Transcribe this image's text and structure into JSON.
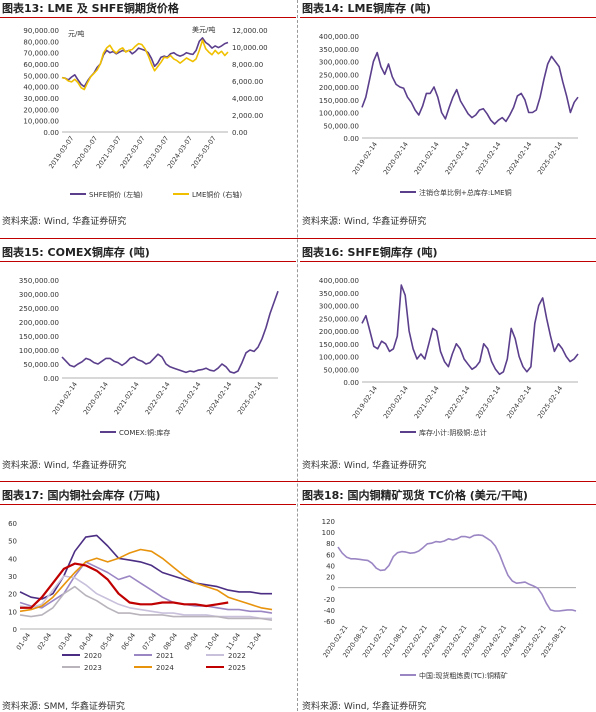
{
  "panels": [
    {
      "title": "图表13: LME 及 SHFE铜期货价格",
      "source": "资料来源: Wind, 华鑫证券研究"
    },
    {
      "title": "图表14: LME铜库存 (吨)",
      "source": "资料来源: Wind, 华鑫证券研究"
    },
    {
      "title": "图表15: COMEX铜库存 (吨)",
      "source": "资料来源: Wind, 华鑫证券研究"
    },
    {
      "title": "图表16: SHFE铜库存 (吨)",
      "source": "资料来源: Wind, 华鑫证券研究"
    },
    {
      "title": "图表17: 国内铜社会库存 (万吨)",
      "source": "资料来源: SMM, 华鑫证券研究"
    },
    {
      "title": "图表18: 国内铜精矿现货 TC价格 (美元/干吨)",
      "source": "资料来源: Wind, 华鑫证券研究"
    }
  ],
  "chart_data": [
    {
      "type": "line",
      "id": "c13",
      "left_unit": "元/吨",
      "right_unit": "美元/吨",
      "y_ticks": [
        "90,000.00",
        "80,000.00",
        "70,000.00",
        "60,000.00",
        "50,000.00",
        "40,000.00",
        "30,000.00",
        "20,000.00",
        "10,000.00",
        "0.00"
      ],
      "y2_ticks": [
        "12,000.00",
        "10,000.00",
        "8,000.00",
        "6,000.00",
        "4,000.00",
        "2,000.00",
        "0.00"
      ],
      "x_ticks": [
        "2019-03-07",
        "2020-03-07",
        "2021-03-07",
        "2022-03-07",
        "2023-03-07",
        "2024-03-07",
        "2025-03-07"
      ],
      "ylim": [
        0,
        90000
      ],
      "y2lim": [
        0,
        12000
      ],
      "series": [
        {
          "name": "SHFE铜价 (左轴)",
          "color": "#5b3f8c",
          "axis": "left",
          "values": [
            48000,
            47500,
            46000,
            48500,
            50500,
            46000,
            42000,
            40000,
            45000,
            49000,
            52000,
            57000,
            60000,
            68000,
            72000,
            70000,
            71000,
            69000,
            70500,
            72000,
            71000,
            72000,
            69000,
            71000,
            74000,
            73000,
            72000,
            70000,
            65000,
            58000,
            61000,
            66000,
            67000,
            66000,
            69000,
            70000,
            68000,
            67000,
            68000,
            70000,
            69000,
            68500,
            72000,
            80000,
            83000,
            79000,
            77000,
            74000,
            76000,
            74500,
            76000,
            78000,
            79000
          ]
        },
        {
          "name": "LME铜价 (右轴)",
          "color": "#f0c000",
          "axis": "right",
          "values": [
            6400,
            6300,
            6000,
            5900,
            6200,
            5800,
            5200,
            5000,
            5800,
            6500,
            6900,
            7300,
            8000,
            9300,
            9900,
            10200,
            9600,
            9300,
            9700,
            9900,
            9400,
            9600,
            9700,
            10100,
            10400,
            10300,
            9800,
            9000,
            8000,
            7200,
            7700,
            8200,
            8800,
            8700,
            9000,
            8600,
            8400,
            8100,
            8400,
            8700,
            8500,
            8300,
            8600,
            9600,
            10800,
            9800,
            9400,
            9100,
            9600,
            9200,
            9500,
            9000,
            9400
          ]
        }
      ]
    },
    {
      "type": "line",
      "id": "c14",
      "y_ticks": [
        "400,000.00",
        "350,000.00",
        "300,000.00",
        "250,000.00",
        "200,000.00",
        "150,000.00",
        "100,000.00",
        "50,000.00",
        "0.00"
      ],
      "x_ticks": [
        "2019-02-14",
        "2020-02-14",
        "2021-02-14",
        "2022-02-14",
        "2023-02-14",
        "2024-02-14",
        "2025-02-14"
      ],
      "ylim": [
        0,
        400000
      ],
      "series": [
        {
          "name": "注销仓单比例+总库存:LME铜",
          "color": "#5b3f8c",
          "values": [
            120000,
            160000,
            230000,
            300000,
            335000,
            280000,
            250000,
            290000,
            240000,
            210000,
            200000,
            195000,
            160000,
            140000,
            110000,
            90000,
            125000,
            175000,
            175000,
            200000,
            160000,
            100000,
            75000,
            120000,
            160000,
            190000,
            145000,
            120000,
            95000,
            80000,
            90000,
            110000,
            115000,
            95000,
            70000,
            55000,
            70000,
            80000,
            65000,
            90000,
            120000,
            165000,
            175000,
            150000,
            100000,
            100000,
            110000,
            160000,
            230000,
            290000,
            320000,
            300000,
            280000,
            220000,
            165000,
            100000,
            140000,
            160000
          ]
        }
      ]
    },
    {
      "type": "line",
      "id": "c15",
      "y_ticks": [
        "350,000.00",
        "300,000.00",
        "250,000.00",
        "200,000.00",
        "150,000.00",
        "100,000.00",
        "50,000.00",
        "0.00"
      ],
      "x_ticks": [
        "2019-02-14",
        "2020-02-14",
        "2021-02-14",
        "2022-02-14",
        "2023-02-14",
        "2024-02-14",
        "2025-02-14"
      ],
      "ylim": [
        0,
        350000
      ],
      "series": [
        {
          "name": "COMEX:铜:库存",
          "color": "#5b3f8c",
          "values": [
            75000,
            60000,
            45000,
            40000,
            50000,
            58000,
            70000,
            65000,
            55000,
            50000,
            60000,
            70000,
            70000,
            60000,
            55000,
            45000,
            55000,
            70000,
            75000,
            65000,
            60000,
            50000,
            55000,
            70000,
            85000,
            75000,
            50000,
            40000,
            35000,
            30000,
            25000,
            20000,
            25000,
            22000,
            28000,
            30000,
            35000,
            28000,
            25000,
            35000,
            50000,
            40000,
            22000,
            18000,
            25000,
            55000,
            90000,
            100000,
            95000,
            110000,
            140000,
            180000,
            230000,
            270000,
            310000
          ]
        }
      ]
    },
    {
      "type": "line",
      "id": "c16",
      "y_ticks": [
        "400,000.00",
        "350,000.00",
        "300,000.00",
        "250,000.00",
        "200,000.00",
        "150,000.00",
        "100,000.00",
        "50,000.00",
        "0.00"
      ],
      "x_ticks": [
        "2019-02-14",
        "2020-02-14",
        "2021-02-14",
        "2022-02-14",
        "2023-02-14",
        "2024-02-14",
        "2025-02-14"
      ],
      "ylim": [
        0,
        400000
      ],
      "series": [
        {
          "name": "库存小计:阴极铜:总计",
          "color": "#5b3f8c",
          "values": [
            230000,
            260000,
            200000,
            140000,
            130000,
            160000,
            150000,
            120000,
            130000,
            180000,
            380000,
            340000,
            200000,
            130000,
            90000,
            110000,
            90000,
            150000,
            210000,
            200000,
            120000,
            80000,
            60000,
            110000,
            150000,
            130000,
            90000,
            70000,
            50000,
            60000,
            80000,
            150000,
            130000,
            80000,
            50000,
            30000,
            40000,
            90000,
            210000,
            170000,
            100000,
            60000,
            40000,
            60000,
            230000,
            300000,
            330000,
            250000,
            180000,
            120000,
            150000,
            130000,
            100000,
            80000,
            90000,
            110000
          ]
        }
      ]
    },
    {
      "type": "line",
      "id": "c17",
      "y_ticks": [
        "60",
        "50",
        "40",
        "30",
        "20",
        "10",
        "0"
      ],
      "x_ticks": [
        "01-04",
        "02-04",
        "03-04",
        "04-04",
        "05-04",
        "06-04",
        "07-04",
        "08-04",
        "09-04",
        "10-04",
        "11-04",
        "12-04"
      ],
      "ylim": [
        0,
        60
      ],
      "series": [
        {
          "name": "2020",
          "color": "#4b2e83",
          "values": [
            21,
            18,
            17,
            20,
            30,
            44,
            52,
            53,
            47,
            40,
            39,
            38,
            36,
            32,
            30,
            28,
            26,
            25,
            24,
            22,
            21,
            21,
            20,
            20
          ]
        },
        {
          "name": "2021",
          "color": "#9b86c4",
          "values": [
            15,
            13,
            12,
            16,
            20,
            30,
            38,
            35,
            32,
            28,
            30,
            26,
            22,
            18,
            15,
            14,
            13,
            13,
            12,
            11,
            11,
            10,
            10,
            9
          ]
        },
        {
          "name": "2022",
          "color": "#c9c0dc",
          "values": [
            13,
            12,
            14,
            22,
            30,
            29,
            25,
            20,
            17,
            14,
            12,
            11,
            10,
            9,
            9,
            8,
            8,
            8,
            7,
            7,
            7,
            7,
            6,
            6
          ]
        },
        {
          "name": "2023",
          "color": "#b9b4bc",
          "values": [
            8,
            7,
            8,
            12,
            20,
            24,
            19,
            16,
            12,
            9,
            9,
            8,
            8,
            8,
            7,
            7,
            7,
            7,
            7,
            6,
            6,
            6,
            6,
            5
          ]
        },
        {
          "name": "2024",
          "color": "#e8930c",
          "values": [
            10,
            11,
            13,
            18,
            25,
            32,
            38,
            40,
            38,
            40,
            43,
            45,
            44,
            40,
            35,
            30,
            26,
            24,
            22,
            18,
            16,
            14,
            12,
            11
          ]
        },
        {
          "name": "2025",
          "color": "#c00000",
          "values": [
            12,
            12,
            18,
            26,
            34,
            37,
            36,
            33,
            28,
            20,
            15,
            14,
            14,
            15,
            15,
            14,
            14,
            13,
            14,
            15
          ]
        }
      ]
    },
    {
      "type": "line",
      "id": "c18",
      "y_ticks": [
        "120",
        "100",
        "80",
        "60",
        "40",
        "20",
        "0",
        "-20",
        "-40",
        "-60"
      ],
      "x_ticks": [
        "2020-02-21",
        "2020-08-21",
        "2021-02-21",
        "2021-08-21",
        "2022-02-21",
        "2022-08-21",
        "2023-02-21",
        "2023-08-21",
        "2024-02-21",
        "2024-08-21",
        "2025-02-21",
        "2025-08-21"
      ],
      "ylim": [
        -60,
        120
      ],
      "series": [
        {
          "name": "中国:现货粗炼费(TC):铜精矿",
          "color": "#9b86c4",
          "values": [
            73,
            62,
            55,
            52,
            52,
            51,
            50,
            49,
            44,
            35,
            31,
            32,
            40,
            56,
            63,
            65,
            64,
            62,
            63,
            66,
            72,
            79,
            80,
            83,
            82,
            84,
            88,
            86,
            88,
            92,
            92,
            90,
            94,
            95,
            94,
            89,
            84,
            75,
            60,
            40,
            22,
            12,
            8,
            9,
            10,
            6,
            3,
            -1,
            -12,
            -28,
            -40,
            -42,
            -42,
            -41,
            -40,
            -40,
            -42
          ]
        }
      ]
    }
  ]
}
